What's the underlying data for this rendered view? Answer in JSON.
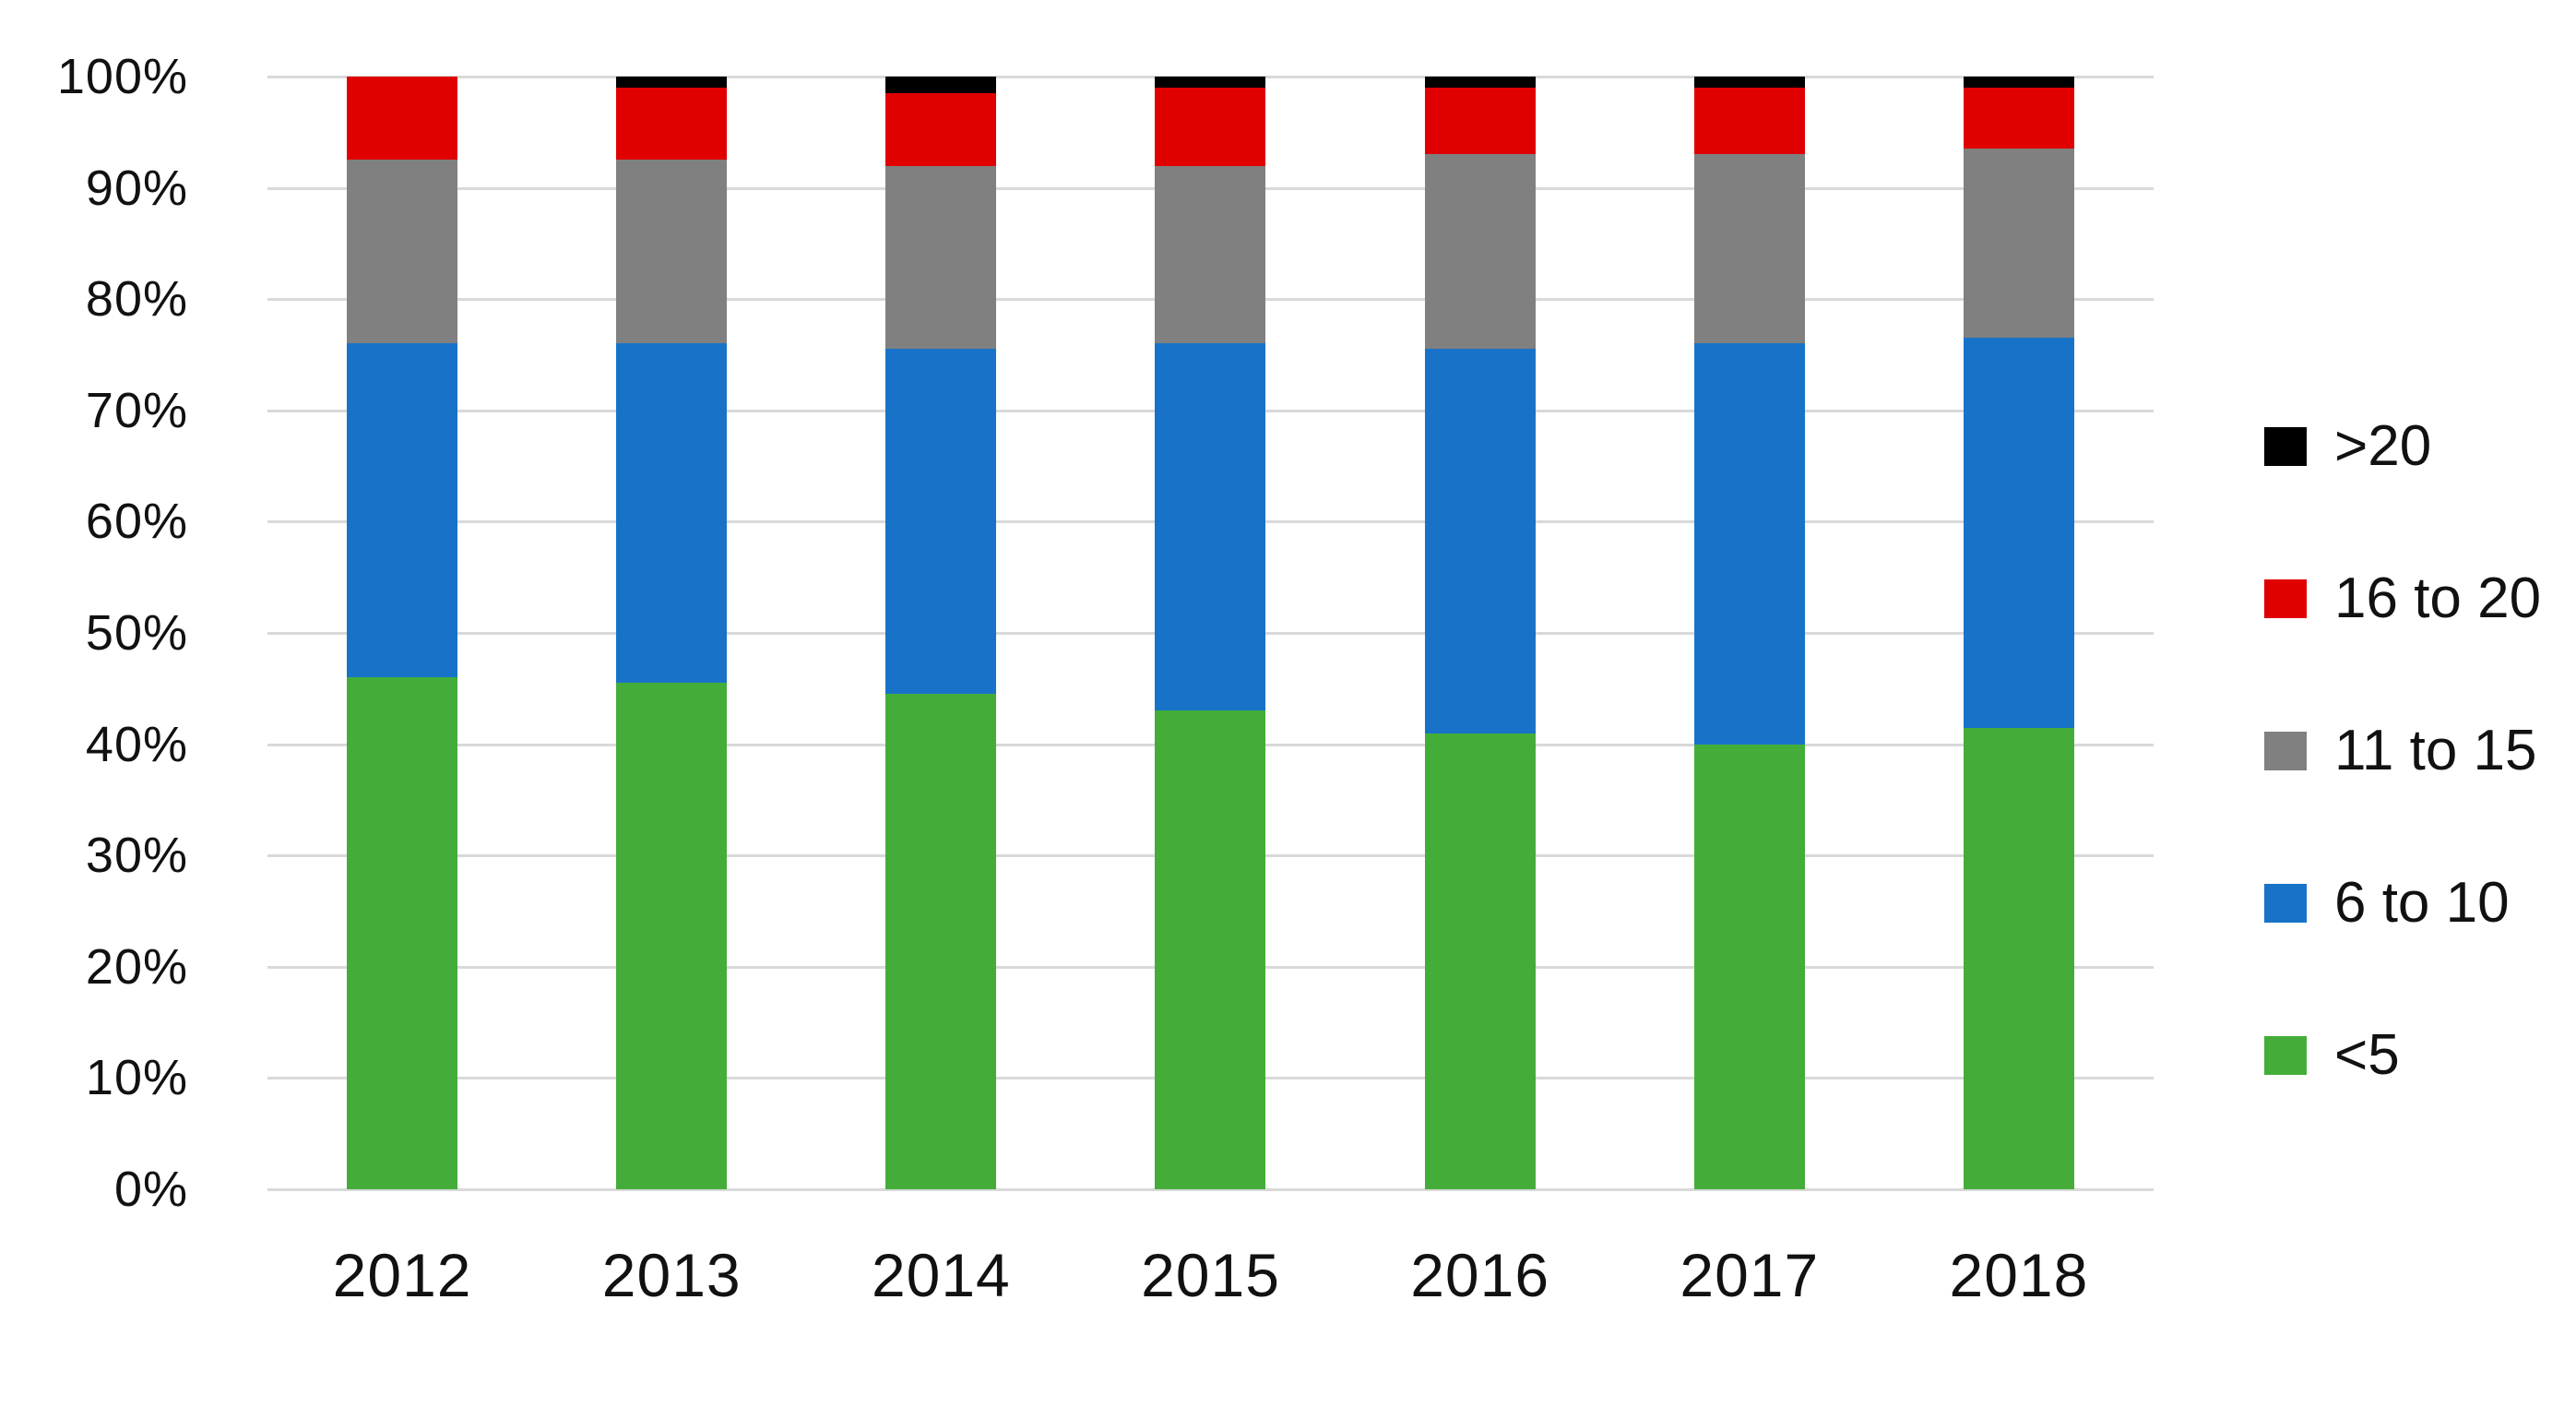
{
  "chart_data": {
    "type": "bar",
    "stacked": true,
    "percent_stacked": true,
    "title": "",
    "xlabel": "",
    "ylabel": "",
    "ylim": [
      0,
      100
    ],
    "grid": true,
    "gridline_color": "#D9D9D9",
    "categories": [
      "2012",
      "2013",
      "2014",
      "2015",
      "2016",
      "2017",
      "2018"
    ],
    "series": [
      {
        "name": "<5",
        "color": "#44AD39",
        "values": [
          46,
          45.5,
          44.5,
          43,
          41,
          40,
          41.5
        ]
      },
      {
        "name": "6 to 10",
        "color": "#1873C8",
        "values": [
          30,
          30.5,
          31,
          33,
          34.5,
          36,
          35
        ]
      },
      {
        "name": "11 to 15",
        "color": "#808080",
        "values": [
          16.5,
          16.5,
          16.5,
          16,
          17.5,
          17,
          17
        ]
      },
      {
        "name": "16 to 20",
        "color": "#E00000",
        "values": [
          7.5,
          6.5,
          6.5,
          7,
          6,
          6,
          5.5
        ]
      },
      {
        "name": ">20",
        "color": "#000000",
        "values": [
          0,
          1,
          1.5,
          1,
          1,
          1,
          1
        ]
      }
    ],
    "y_ticks": [
      "100%",
      "90%",
      "80%",
      "70%",
      "60%",
      "50%",
      "40%",
      "30%",
      "20%",
      "10%",
      "0%"
    ],
    "legend_position": "right"
  },
  "legend": {
    "items": [
      {
        "label": ">20",
        "color": "#000000"
      },
      {
        "label": "16 to 20",
        "color": "#E00000"
      },
      {
        "label": "11 to 15",
        "color": "#808080"
      },
      {
        "label": "6 to 10",
        "color": "#1873C8"
      },
      {
        "label": "<5",
        "color": "#44AD39"
      }
    ]
  },
  "colors": {
    "background": "#FFFFFF",
    "text": "#111111",
    "gridline": "#D9D9D9"
  }
}
